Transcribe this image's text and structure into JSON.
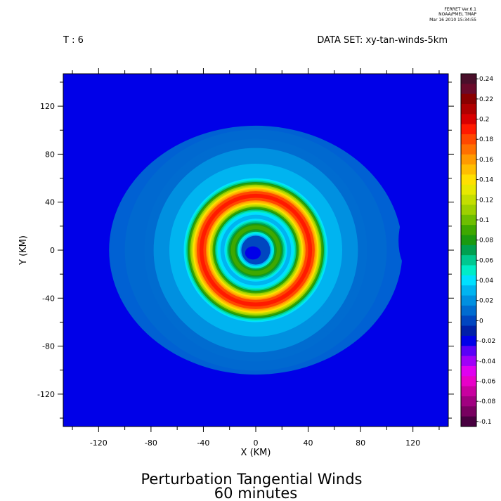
{
  "header": {
    "program_line1": "FERRET  Ver.6.1",
    "program_line2": "NOAA/PMEL TMAP",
    "program_line3": "Mar 16 2010 15:34:55",
    "time_label": "T : 6",
    "dataset_label": "DATA SET: xy-tan-winds-5km"
  },
  "chart_data": {
    "type": "heatmap",
    "title": "Perturbation Tangential Winds",
    "subtitle": "60 minutes",
    "xlabel": "X (KM)",
    "ylabel": "Y (KM)",
    "xlim": [
      -147,
      147
    ],
    "ylim": [
      -147,
      147
    ],
    "xticks": [
      -120,
      -80,
      -40,
      0,
      40,
      80,
      120
    ],
    "yticks": [
      -120,
      -80,
      -40,
      0,
      40,
      80,
      120
    ],
    "grid": false,
    "colorbar": {
      "placement": "right",
      "levels": [
        0.24,
        0.23,
        0.22,
        0.21,
        0.2,
        0.19,
        0.18,
        0.17,
        0.16,
        0.15,
        0.14,
        0.13,
        0.12,
        0.11,
        0.1,
        0.09,
        0.08,
        0.07,
        0.06,
        0.05,
        0.04,
        0.03,
        0.02,
        0.01,
        0,
        -0.01,
        -0.02,
        -0.03,
        -0.04,
        -0.05,
        -0.06,
        -0.07,
        -0.08,
        -0.09,
        -0.1
      ],
      "tick_labels": [
        "0.24",
        "0.22",
        "0.2",
        "0.18",
        "0.16",
        "0.14",
        "0.12",
        "0.1",
        "0.08",
        "0.06",
        "0.04",
        "0.02",
        "0",
        "-0.02",
        "-0.04",
        "-0.06",
        "-0.08",
        "-0.1"
      ],
      "colors": [
        "#4a0f2a",
        "#6a0a2a",
        "#8a0000",
        "#b00000",
        "#d80000",
        "#ff1a00",
        "#ff4800",
        "#ff7000",
        "#ff9a00",
        "#ffbe00",
        "#ffe000",
        "#e8e800",
        "#c4de00",
        "#9ed000",
        "#6ebe00",
        "#3ea800",
        "#1a9a10",
        "#00a050",
        "#00c890",
        "#00ecc8",
        "#00e0ff",
        "#00b4f0",
        "#0090e0",
        "#006cd0",
        "#0046c0",
        "#0020a8",
        "#0000e8",
        "#5a00f8",
        "#a000f8",
        "#e000f0",
        "#e800c8",
        "#c800a0",
        "#a00080",
        "#780060",
        "#480040"
      ]
    },
    "field_description_values": {
      "inner_ring_radius_km": 18,
      "outer_ring_radius_km": 42,
      "peak_value": 0.19,
      "background_value": 0.0
    }
  }
}
